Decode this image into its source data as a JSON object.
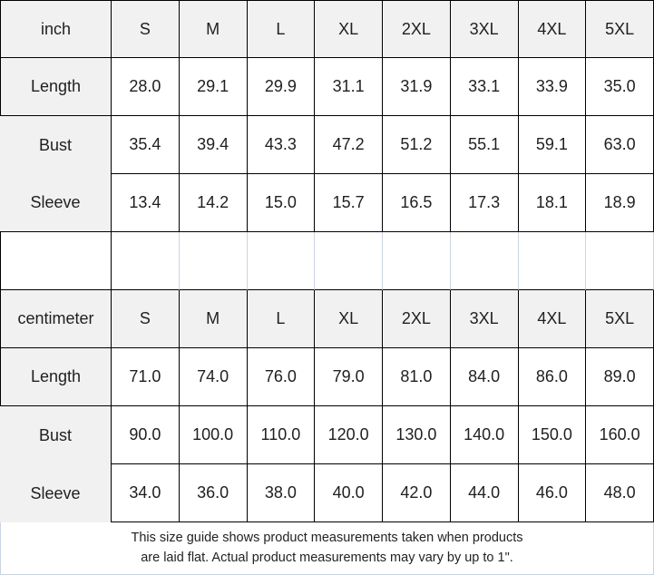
{
  "colors": {
    "header_bg": "#f1f1f1",
    "border": "#000000",
    "light_gridline": "#ccd4e2",
    "text": "#1f1f1f"
  },
  "size_headers": [
    "S",
    "M",
    "L",
    "XL",
    "2XL",
    "3XL",
    "4XL",
    "5XL"
  ],
  "inch": {
    "unit": "inch",
    "rows": [
      {
        "label": "Length",
        "values": [
          "28.0",
          "29.1",
          "29.9",
          "31.1",
          "31.9",
          "33.1",
          "33.9",
          "35.0"
        ]
      },
      {
        "label": "Bust",
        "values": [
          "35.4",
          "39.4",
          "43.3",
          "47.2",
          "51.2",
          "55.1",
          "59.1",
          "63.0"
        ]
      },
      {
        "label": "Sleeve",
        "values": [
          "13.4",
          "14.2",
          "15.0",
          "15.7",
          "16.5",
          "17.3",
          "18.1",
          "18.9"
        ]
      }
    ]
  },
  "centimeter": {
    "unit": "centimeter",
    "rows": [
      {
        "label": "Length",
        "values": [
          "71.0",
          "74.0",
          "76.0",
          "79.0",
          "81.0",
          "84.0",
          "86.0",
          "89.0"
        ]
      },
      {
        "label": "Bust",
        "values": [
          "90.0",
          "100.0",
          "110.0",
          "120.0",
          "130.0",
          "140.0",
          "150.0",
          "160.0"
        ]
      },
      {
        "label": "Sleeve",
        "values": [
          "34.0",
          "36.0",
          "38.0",
          "40.0",
          "42.0",
          "44.0",
          "46.0",
          "48.0"
        ]
      }
    ]
  },
  "footer": {
    "line1": "This size guide shows product measurements taken when products",
    "line2": "are laid flat. Actual product measurements may vary by up to 1\"."
  }
}
